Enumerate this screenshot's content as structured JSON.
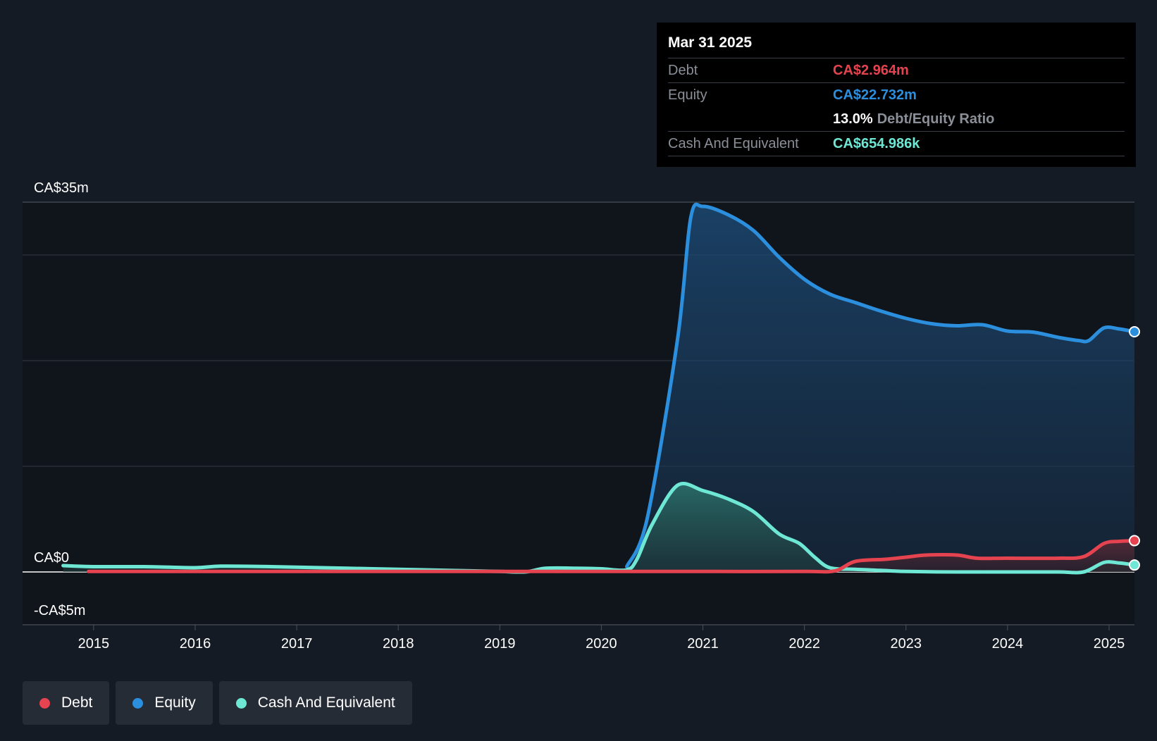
{
  "colors": {
    "background": "#151b24",
    "debt": "#e5434f",
    "equity": "#2b8fde",
    "cash": "#6ee8d4"
  },
  "tooltip": {
    "date": "Mar 31 2025",
    "debt_label": "Debt",
    "debt_value": "CA$2.964m",
    "equity_label": "Equity",
    "equity_value": "CA$22.732m",
    "ratio_value": "13.0%",
    "ratio_label": "Debt/Equity Ratio",
    "cash_label": "Cash And Equivalent",
    "cash_value": "CA$654.986k"
  },
  "legend": [
    {
      "label": "Debt",
      "color": "#e5434f"
    },
    {
      "label": "Equity",
      "color": "#2b8fde"
    },
    {
      "label": "Cash And Equivalent",
      "color": "#6ee8d4"
    }
  ],
  "chart_data": {
    "type": "area",
    "y_unit": "CA$ millions",
    "ylim": [
      -5,
      35
    ],
    "y_tick_labels": [
      {
        "value": 35,
        "label": "CA$35m"
      },
      {
        "value": 0,
        "label": "CA$0"
      },
      {
        "value": -5,
        "label": "-CA$5m"
      }
    ],
    "gridlines": [
      35,
      30,
      20,
      10,
      0,
      -5
    ],
    "xlim": [
      2014.3,
      2025.25
    ],
    "x_ticks": [
      2015,
      2016,
      2017,
      2018,
      2019,
      2020,
      2021,
      2022,
      2023,
      2024,
      2025
    ],
    "x_tick_labels": [
      "2015",
      "2016",
      "2017",
      "2018",
      "2019",
      "2020",
      "2021",
      "2022",
      "2023",
      "2024",
      "2025"
    ],
    "legend_position": "bottom-left",
    "series": [
      {
        "name": "Debt",
        "x": [
          2014.95,
          2016,
          2017,
          2018,
          2019,
          2020,
          2021,
          2022,
          2022.3,
          2022.5,
          2022.8,
          2023,
          2023.2,
          2023.5,
          2023.7,
          2024,
          2024.5,
          2024.75,
          2024.95,
          2025.1,
          2025.25
        ],
        "y": [
          0.05,
          0.05,
          0.05,
          0.05,
          0.05,
          0.05,
          0.05,
          0.05,
          0.1,
          1.0,
          1.2,
          1.4,
          1.6,
          1.6,
          1.3,
          1.3,
          1.3,
          1.45,
          2.7,
          2.9,
          2.964
        ]
      },
      {
        "name": "Equity",
        "x": [
          2020.25,
          2020.45,
          2020.75,
          2020.88,
          2021,
          2021.25,
          2021.5,
          2021.75,
          2022,
          2022.25,
          2022.5,
          2022.75,
          2023,
          2023.25,
          2023.5,
          2023.75,
          2024,
          2024.25,
          2024.5,
          2024.7,
          2024.8,
          2024.95,
          2025.1,
          2025.25
        ],
        "y": [
          0.5,
          5.0,
          22.0,
          33.5,
          34.6,
          33.8,
          32.3,
          29.8,
          27.7,
          26.3,
          25.5,
          24.7,
          24.0,
          23.5,
          23.3,
          23.4,
          22.8,
          22.7,
          22.2,
          21.9,
          21.9,
          23.1,
          23.0,
          22.732
        ]
      },
      {
        "name": "Cash And Equivalent",
        "x": [
          2014.7,
          2015,
          2015.5,
          2016,
          2016.25,
          2016.75,
          2017.25,
          2017.75,
          2018.25,
          2018.75,
          2019,
          2019.25,
          2019.45,
          2019.75,
          2020,
          2020.25,
          2020.35,
          2020.5,
          2020.75,
          2021,
          2021.25,
          2021.5,
          2021.75,
          2021.95,
          2022.1,
          2022.25,
          2022.5,
          2022.75,
          2023,
          2023.5,
          2024,
          2024.5,
          2024.75,
          2024.95,
          2025.1,
          2025.25
        ],
        "y": [
          0.6,
          0.5,
          0.5,
          0.4,
          0.55,
          0.5,
          0.4,
          0.3,
          0.2,
          0.1,
          0.05,
          0.0,
          0.35,
          0.35,
          0.3,
          0.2,
          1.2,
          4.5,
          8.2,
          7.7,
          6.9,
          5.7,
          3.6,
          2.7,
          1.4,
          0.4,
          0.25,
          0.15,
          0.05,
          0.0,
          0.0,
          0.0,
          0.0,
          0.9,
          0.85,
          0.655
        ]
      }
    ]
  }
}
